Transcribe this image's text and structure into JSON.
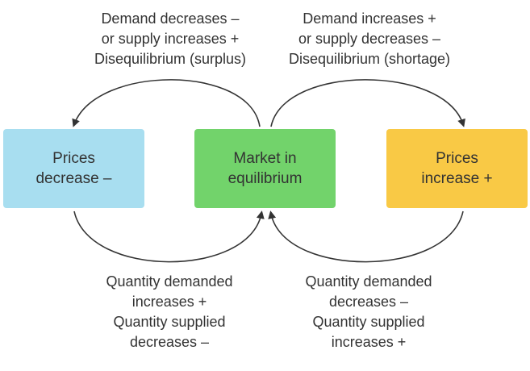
{
  "top_left_label": {
    "line1": "Demand decreases –",
    "line2": "or supply increases +",
    "line3": "Disequilibrium (surplus)"
  },
  "top_right_label": {
    "line1": "Demand increases +",
    "line2": "or supply decreases –",
    "line3": "Disequilibrium (shortage)"
  },
  "boxes": {
    "left": {
      "line1": "Prices",
      "line2": "decrease –",
      "color": "#a8def0"
    },
    "center": {
      "line1": "Market in",
      "line2": "equilibrium",
      "color": "#72d36b"
    },
    "right": {
      "line1": "Prices",
      "line2": "increase +",
      "color": "#f9c945"
    }
  },
  "bottom_left_label": {
    "line1": "Quantity demanded",
    "line2": "increases +",
    "line3": "Quantity supplied",
    "line4": "decreases –"
  },
  "bottom_right_label": {
    "line1": "Quantity demanded",
    "line2": "decreases –",
    "line3": "Quantity supplied",
    "line4": "increases +"
  },
  "arrow_color": "#333333"
}
